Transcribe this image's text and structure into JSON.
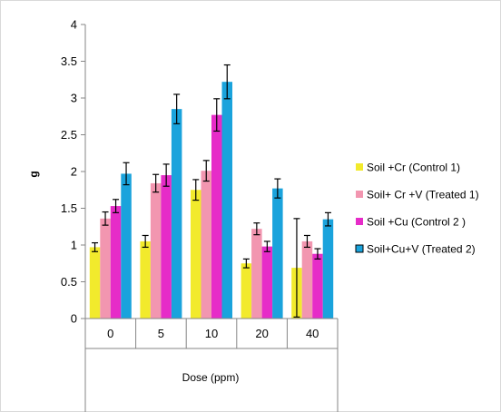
{
  "chart_data": {
    "type": "bar",
    "title": "",
    "xlabel": "Dose (ppm)",
    "ylabel": "g",
    "ylim": [
      0,
      4
    ],
    "yticks": [
      "0",
      "0.5",
      "1",
      "1.5",
      "2",
      "2.5",
      "3",
      "3.5",
      "4"
    ],
    "ytick_values": [
      0,
      0.5,
      1,
      1.5,
      2,
      2.5,
      3,
      3.5,
      4
    ],
    "categories": [
      "0",
      "5",
      "10",
      "20",
      "40"
    ],
    "grid": false,
    "legend_position": "right",
    "series": [
      {
        "name": "Soil +Cr (Control 1)",
        "color": "#f2ea2c",
        "values": [
          0.97,
          1.05,
          1.75,
          0.75,
          0.69
        ],
        "errors": [
          0.06,
          0.08,
          0.14,
          0.06,
          0.67
        ]
      },
      {
        "name": "Soil+ Cr +V (Treated 1)",
        "color": "#f296b0",
        "values": [
          1.36,
          1.84,
          2.01,
          1.22,
          1.05
        ],
        "errors": [
          0.09,
          0.12,
          0.14,
          0.08,
          0.08
        ]
      },
      {
        "name": "Soil +Cu (Control 2 )",
        "color": "#e62cc8",
        "values": [
          1.53,
          1.95,
          2.77,
          0.98,
          0.88
        ],
        "errors": [
          0.09,
          0.15,
          0.22,
          0.07,
          0.07
        ]
      },
      {
        "name": "Soil+Cu+V (Treated 2)",
        "color": "#1aa3dc",
        "values": [
          1.97,
          2.85,
          3.22,
          1.77,
          1.35
        ],
        "errors": [
          0.15,
          0.2,
          0.23,
          0.13,
          0.09
        ]
      }
    ]
  }
}
